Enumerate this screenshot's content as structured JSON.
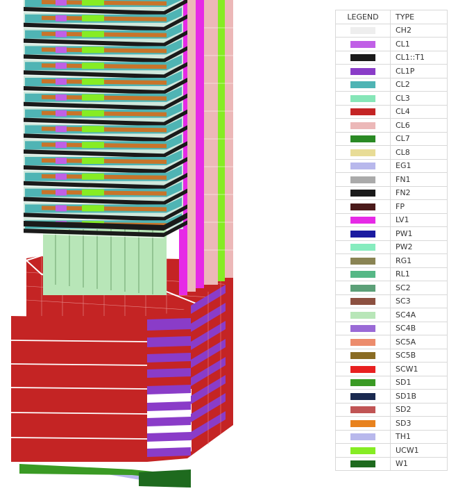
{
  "legend": {
    "header_legend": "LEGEND",
    "header_type": "TYPE",
    "items": [
      {
        "type": "CH2",
        "color": "#eeeeee"
      },
      {
        "type": "CL1",
        "color": "#c060e6"
      },
      {
        "type": "CL1::T1",
        "color": "#1a1a1a"
      },
      {
        "type": "CL1P",
        "color": "#8a3cc8"
      },
      {
        "type": "CL2",
        "color": "#4fb4b4"
      },
      {
        "type": "CL3",
        "color": "#86e6b8"
      },
      {
        "type": "CL4",
        "color": "#c42424"
      },
      {
        "type": "CL6",
        "color": "#ecb8b8"
      },
      {
        "type": "CL7",
        "color": "#2a8a24"
      },
      {
        "type": "CL8",
        "color": "#e8dc96"
      },
      {
        "type": "EG1",
        "color": "#b8b8ec"
      },
      {
        "type": "FN1",
        "color": "#aaaaaa"
      },
      {
        "type": "FN2",
        "color": "#1a1a1a"
      },
      {
        "type": "FP",
        "color": "#4a1a1a"
      },
      {
        "type": "LV1",
        "color": "#e62ae6"
      },
      {
        "type": "PW1",
        "color": "#1a1aa0"
      },
      {
        "type": "PW2",
        "color": "#86ecbe"
      },
      {
        "type": "RG1",
        "color": "#8a8454"
      },
      {
        "type": "RL1",
        "color": "#56b886"
      },
      {
        "type": "SC2",
        "color": "#5ca078"
      },
      {
        "type": "SC3",
        "color": "#8c5040"
      },
      {
        "type": "SC4A",
        "color": "#b8e6b8"
      },
      {
        "type": "SC4B",
        "color": "#9a6ad6"
      },
      {
        "type": "SC5A",
        "color": "#ec8c6c"
      },
      {
        "type": "SC5B",
        "color": "#8a6c24"
      },
      {
        "type": "SCW1",
        "color": "#e82020"
      },
      {
        "type": "SD1",
        "color": "#3a9a24"
      },
      {
        "type": "SD1B",
        "color": "#1a2a50"
      },
      {
        "type": "SD2",
        "color": "#c05454"
      },
      {
        "type": "SD3",
        "color": "#e8821e"
      },
      {
        "type": "TH1",
        "color": "#b8b8ec"
      },
      {
        "type": "UCW1",
        "color": "#86ec24"
      },
      {
        "type": "W1",
        "color": "#1e6a1e"
      }
    ]
  }
}
